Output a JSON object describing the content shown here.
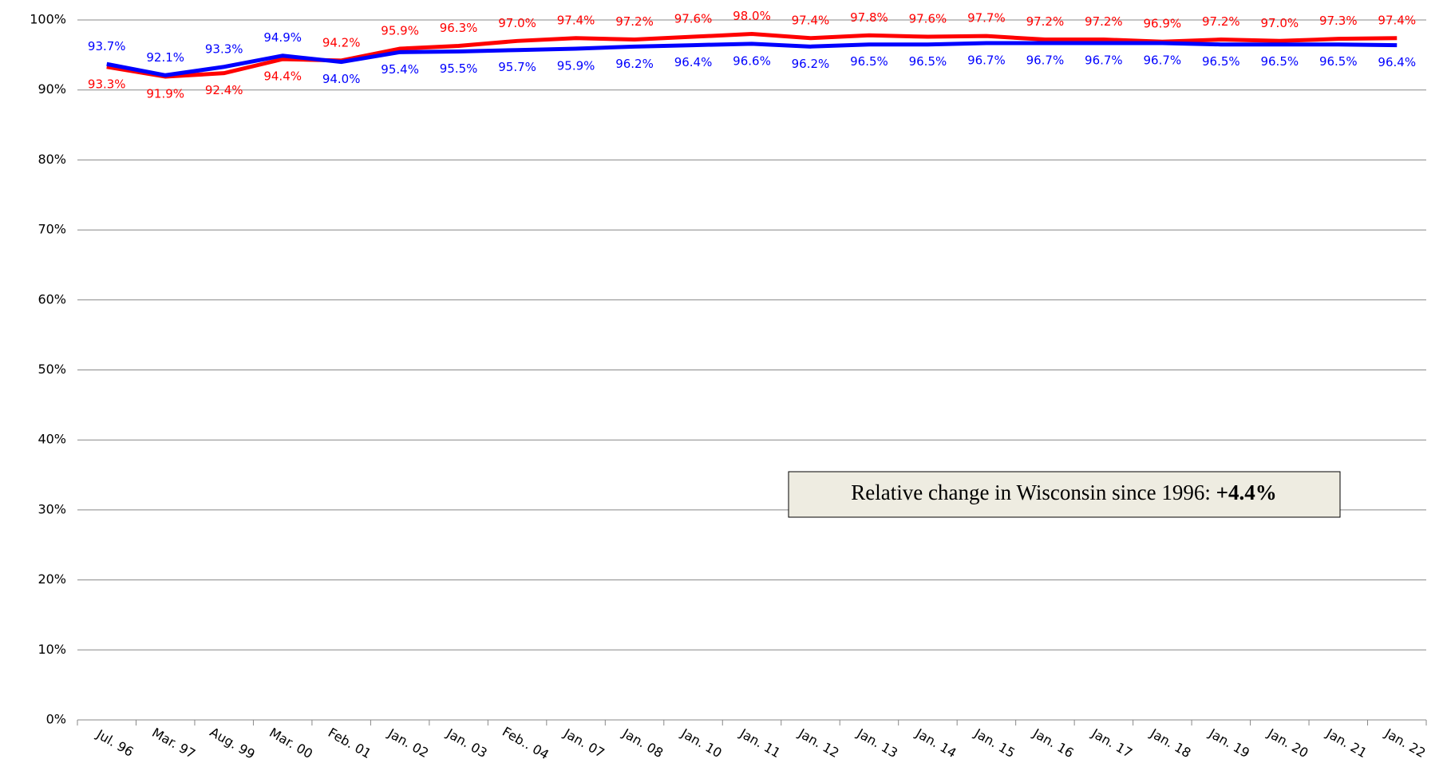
{
  "chart_data": {
    "type": "line",
    "categories": [
      "Jul. 96",
      "Mar. 97",
      "Aug. 99",
      "Mar. 00",
      "Feb. 01",
      "Jan. 02",
      "Jan. 03",
      "Feb.. 04",
      "Jan. 07",
      "Jan. 08",
      "Jan. 10",
      "Jan. 11",
      "Jan. 12",
      "Jan. 13",
      "Jan. 14",
      "Jan. 15",
      "Jan. 16",
      "Jan. 17",
      "Jan. 18",
      "Jan. 19",
      "Jan. 20",
      "Jan. 21",
      "Jan. 22"
    ],
    "series": [
      {
        "color": "#ff0000",
        "values": [
          93.3,
          91.9,
          92.4,
          94.4,
          94.2,
          95.9,
          96.3,
          97.0,
          97.4,
          97.2,
          97.6,
          98.0,
          97.4,
          97.8,
          97.6,
          97.7,
          97.2,
          97.2,
          96.9,
          97.2,
          97.0,
          97.3,
          97.4
        ],
        "value_labels": [
          "93.3%",
          "91.9%",
          "92.4%",
          "94.4%",
          "94.2%",
          "95.9%",
          "96.3%",
          "97.0%",
          "97.4%",
          "97.2%",
          "97.6%",
          "98.0%",
          "97.4%",
          "97.8%",
          "97.6%",
          "97.7%",
          "97.2%",
          "97.2%",
          "96.9%",
          "97.2%",
          "97.0%",
          "97.3%",
          "97.4%"
        ]
      },
      {
        "color": "#0000ff",
        "values": [
          93.7,
          92.1,
          93.3,
          94.9,
          94.0,
          95.4,
          95.5,
          95.7,
          95.9,
          96.2,
          96.4,
          96.6,
          96.2,
          96.5,
          96.5,
          96.7,
          96.7,
          96.7,
          96.7,
          96.5,
          96.5,
          96.5,
          96.4
        ],
        "value_labels": [
          "93.7%",
          "92.1%",
          "93.3%",
          "94.9%",
          "94.0%",
          "95.4%",
          "95.5%",
          "95.7%",
          "95.9%",
          "96.2%",
          "96.4%",
          "96.6%",
          "96.2%",
          "96.5%",
          "96.5%",
          "96.7%",
          "96.7%",
          "96.7%",
          "96.7%",
          "96.5%",
          "96.5%",
          "96.5%",
          "96.4%"
        ]
      }
    ],
    "ylim": [
      0,
      100
    ],
    "yticks": [
      {
        "value": 0,
        "label": "0%"
      },
      {
        "value": 10,
        "label": "10%"
      },
      {
        "value": 20,
        "label": "20%"
      },
      {
        "value": 30,
        "label": "30%"
      },
      {
        "value": 40,
        "label": "40%"
      },
      {
        "value": 50,
        "label": "50%"
      },
      {
        "value": 60,
        "label": "60%"
      },
      {
        "value": 70,
        "label": "70%"
      },
      {
        "value": 80,
        "label": "80%"
      },
      {
        "value": 90,
        "label": "90%"
      },
      {
        "value": 100,
        "label": "100%"
      }
    ],
    "grid": true,
    "annotation": {
      "text": "Relative change in Wisconsin since 1996: ",
      "bold": "+4.4%"
    }
  }
}
